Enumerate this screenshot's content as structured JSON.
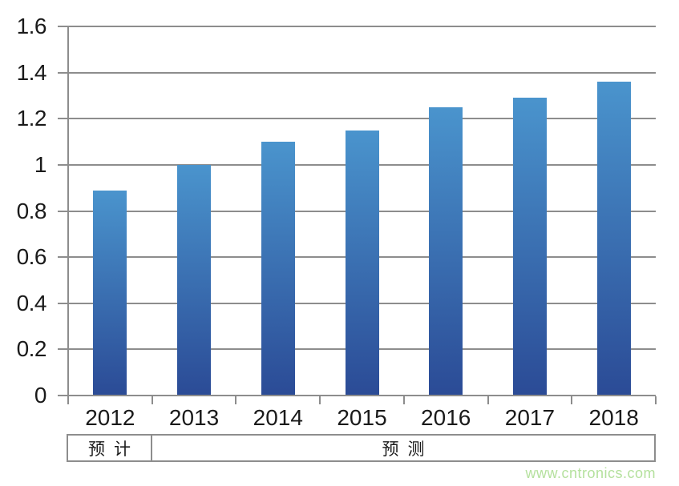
{
  "chart_data": {
    "type": "bar",
    "categories": [
      "2012",
      "2013",
      "2014",
      "2015",
      "2016",
      "2017",
      "2018"
    ],
    "values": [
      0.89,
      1.0,
      1.1,
      1.15,
      1.25,
      1.29,
      1.36
    ],
    "title": "",
    "xlabel": "",
    "ylabel": "",
    "ylim": [
      0,
      1.6
    ],
    "y_ticks": [
      0,
      0.2,
      0.4,
      0.6,
      0.8,
      1,
      1.2,
      1.4,
      1.6
    ],
    "y_tick_labels": [
      "0",
      "0.2",
      "0.4",
      "0.6",
      "0.8",
      "1",
      "1.2",
      "1.4",
      "1.6"
    ],
    "grid": true,
    "legend": false
  },
  "annotation_row": {
    "cells": [
      {
        "label": "预计",
        "span_categories": [
          "2012"
        ]
      },
      {
        "label": "预测",
        "span_categories": [
          "2013",
          "2014",
          "2015",
          "2016",
          "2017",
          "2018"
        ]
      }
    ]
  },
  "watermark": "www.cntronics.com",
  "colors": {
    "bar_gradient_top": "#4a94cd",
    "bar_gradient_bottom": "#2b4b96",
    "gridline": "#8d8d8d",
    "text": "#1a1a1a",
    "watermark": "#b5e19e"
  }
}
